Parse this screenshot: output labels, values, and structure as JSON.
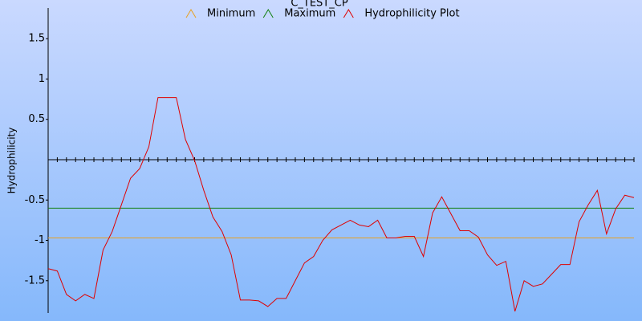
{
  "chart_data": {
    "type": "line",
    "title": "C_TEST_CP",
    "y_label": "Hydrophilicity",
    "x": [
      1,
      2,
      3,
      4,
      5,
      6,
      7,
      8,
      9,
      10,
      11,
      12,
      13,
      14,
      15,
      16,
      17,
      18,
      19,
      20,
      21,
      22,
      23,
      24,
      25,
      26,
      27,
      28,
      29,
      30,
      31,
      32,
      33,
      34,
      35,
      36,
      37,
      38,
      39,
      40,
      41,
      42,
      43,
      44,
      45,
      46,
      47,
      48,
      49,
      50,
      51,
      52,
      53,
      54,
      55,
      56,
      57,
      58,
      59,
      60,
      61,
      62,
      63,
      64,
      65
    ],
    "xlim": [
      1,
      65
    ],
    "series": [
      {
        "name": "Minimum",
        "color": "#e8a020",
        "value": -0.97
      },
      {
        "name": "Maximum",
        "color": "#108010",
        "value": -0.6
      },
      {
        "name": "Hydrophilicity Plot",
        "color": "#e00000",
        "values": [
          -1.35,
          -1.38,
          -1.67,
          -1.75,
          -1.67,
          -1.72,
          -1.12,
          -0.89,
          -0.56,
          -0.23,
          -0.11,
          0.16,
          0.77,
          0.77,
          0.77,
          0.25,
          -0.01,
          -0.38,
          -0.71,
          -0.89,
          -1.18,
          -1.74,
          -1.74,
          -1.75,
          -1.82,
          -1.72,
          -1.72,
          -1.5,
          -1.28,
          -1.2,
          -1.0,
          -0.87,
          -0.81,
          -0.75,
          -0.81,
          -0.83,
          -0.75,
          -0.97,
          -0.97,
          -0.95,
          -0.95,
          -1.2,
          -0.66,
          -0.46,
          -0.67,
          -0.88,
          -0.88,
          -0.96,
          -1.18,
          -1.31,
          -1.26,
          -1.88,
          -1.5,
          -1.57,
          -1.54,
          -1.42,
          -1.3,
          -1.3,
          -0.77,
          -0.56,
          -0.38,
          -0.92,
          -0.61,
          -0.44,
          -0.47
        ]
      }
    ],
    "ylim": [
      -1.9,
      1.9
    ],
    "yticks": [
      1.5,
      1,
      0.5,
      -0.5,
      -1,
      -1.5
    ]
  }
}
